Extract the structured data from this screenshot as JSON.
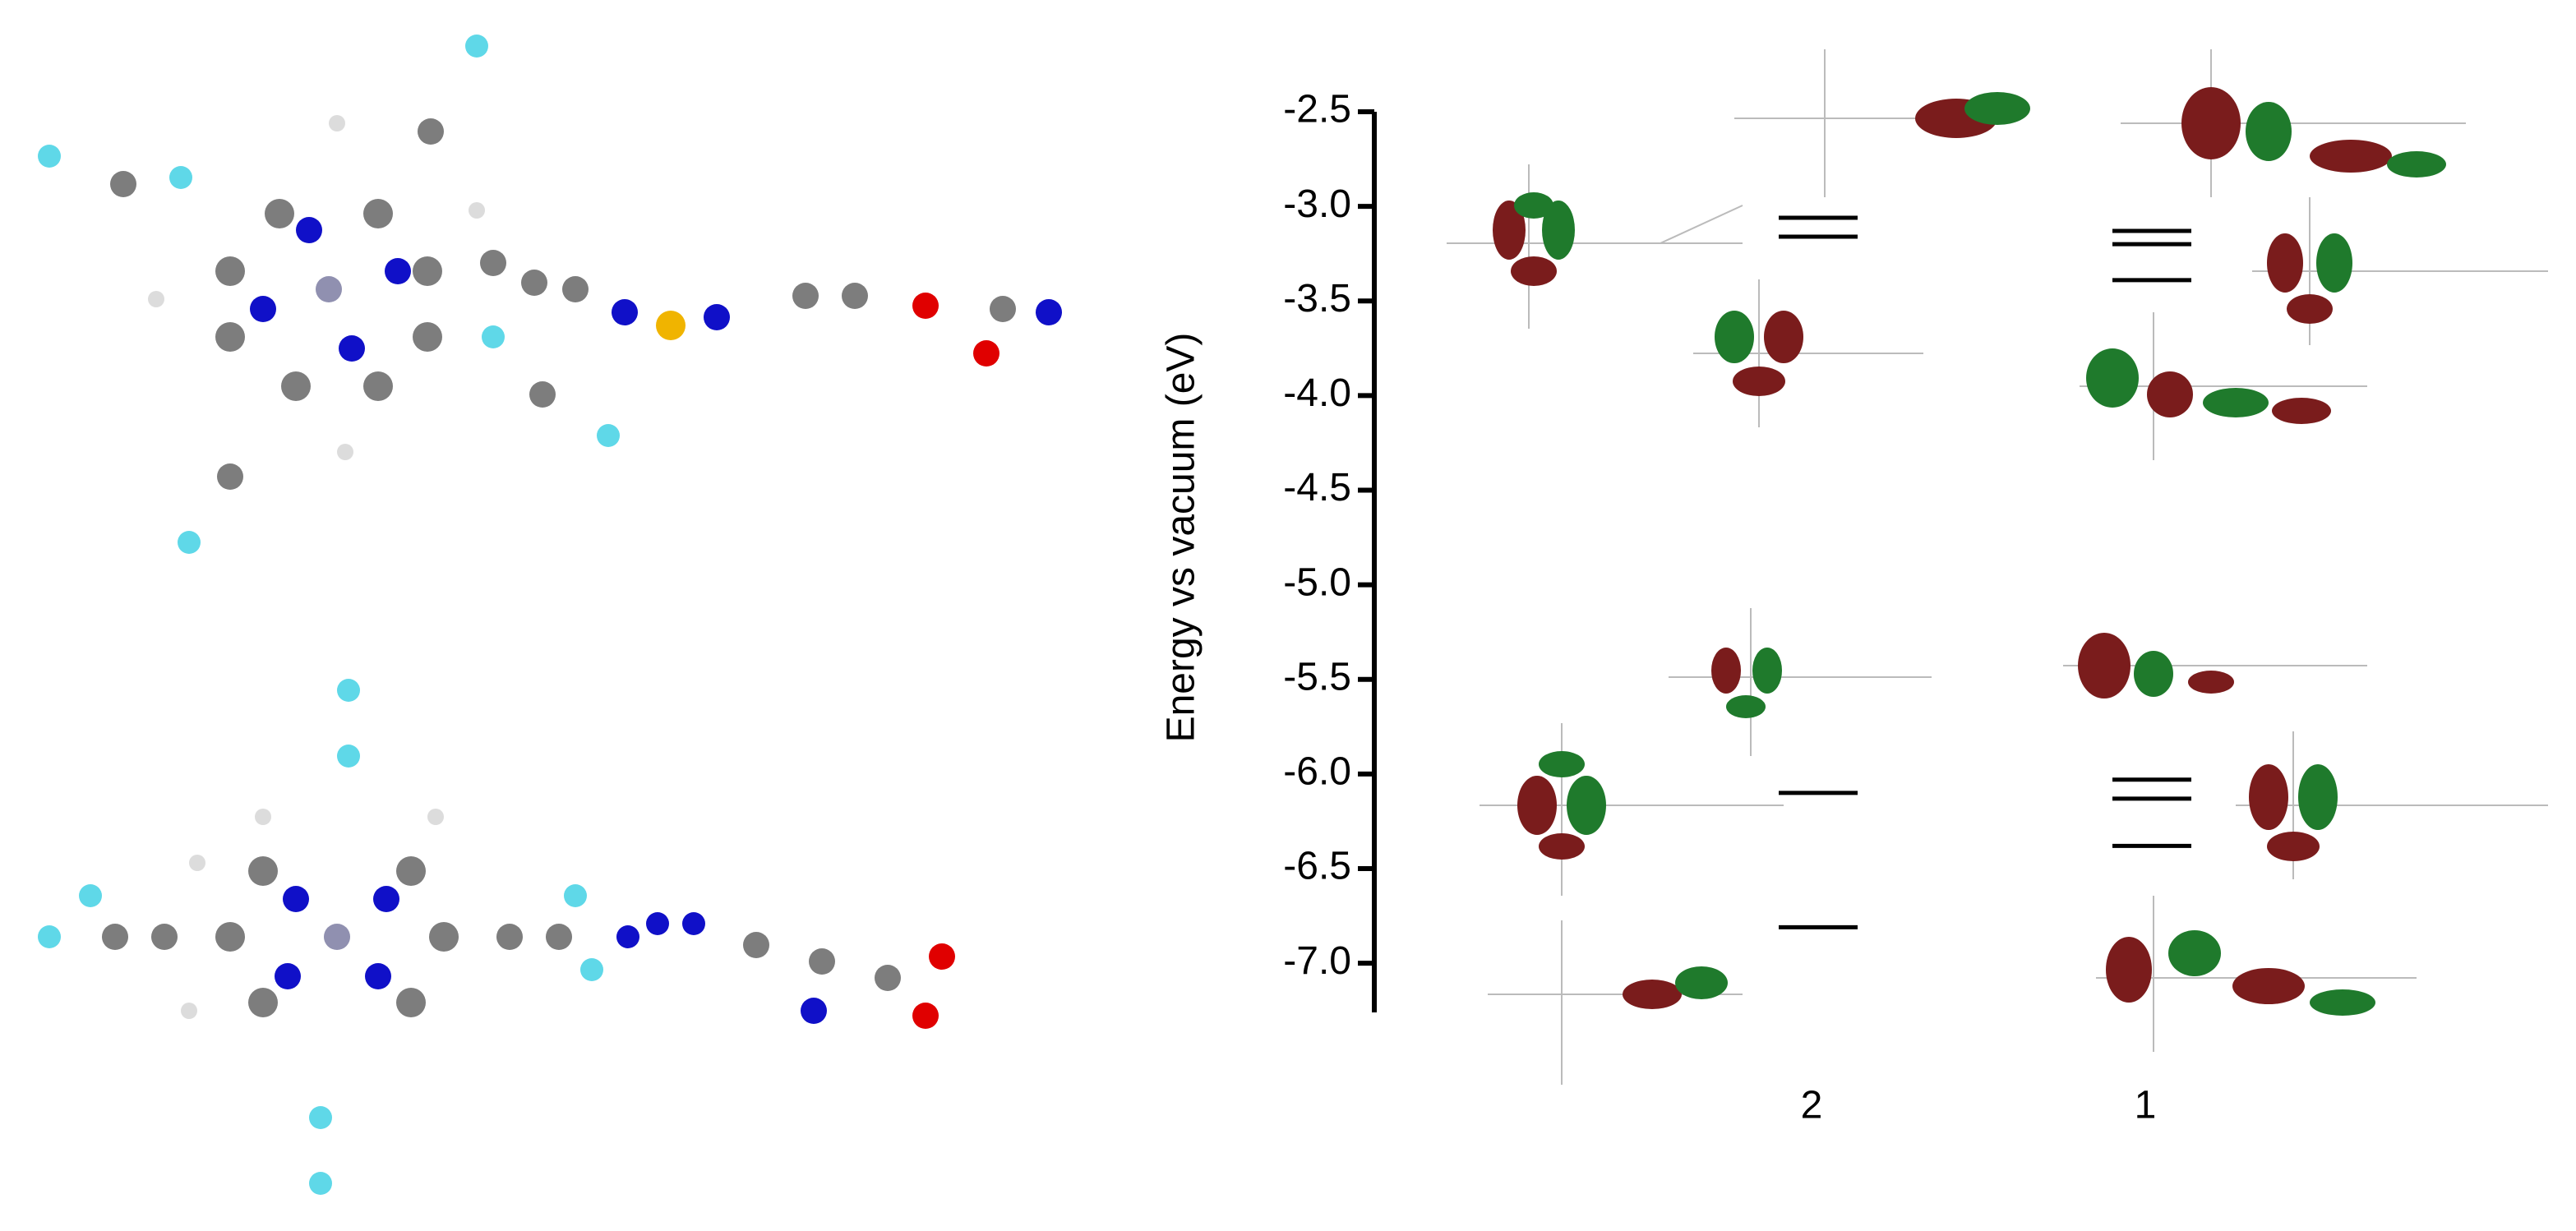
{
  "chart_data": {
    "type": "energy_level",
    "y_label": "Energy vs vacuum (eV)",
    "categories": [
      "2",
      "1"
    ],
    "levels": [
      [
        -3.06,
        -3.16,
        -6.1,
        -6.81
      ],
      [
        -3.13,
        -3.2,
        -3.39,
        -6.03,
        -6.13,
        -6.38
      ]
    ],
    "color": "#000000",
    "ylim": [
      -7.26,
      -2.5
    ],
    "yticks": [
      {
        "value": -2.5,
        "label": "-2.5"
      },
      {
        "value": -3,
        "label": "-3.0"
      },
      {
        "value": -3.5,
        "label": "-3.5"
      },
      {
        "value": -4,
        "label": "-4.0"
      },
      {
        "value": -4.5,
        "label": "-4.5"
      },
      {
        "value": -5,
        "label": "-5.0"
      },
      {
        "value": -5.5,
        "label": "-5.5"
      },
      {
        "value": -6,
        "label": "-6.0"
      },
      {
        "value": -6.5,
        "label": "-6.5"
      },
      {
        "value": -7,
        "label": "-7.0"
      }
    ]
  }
}
